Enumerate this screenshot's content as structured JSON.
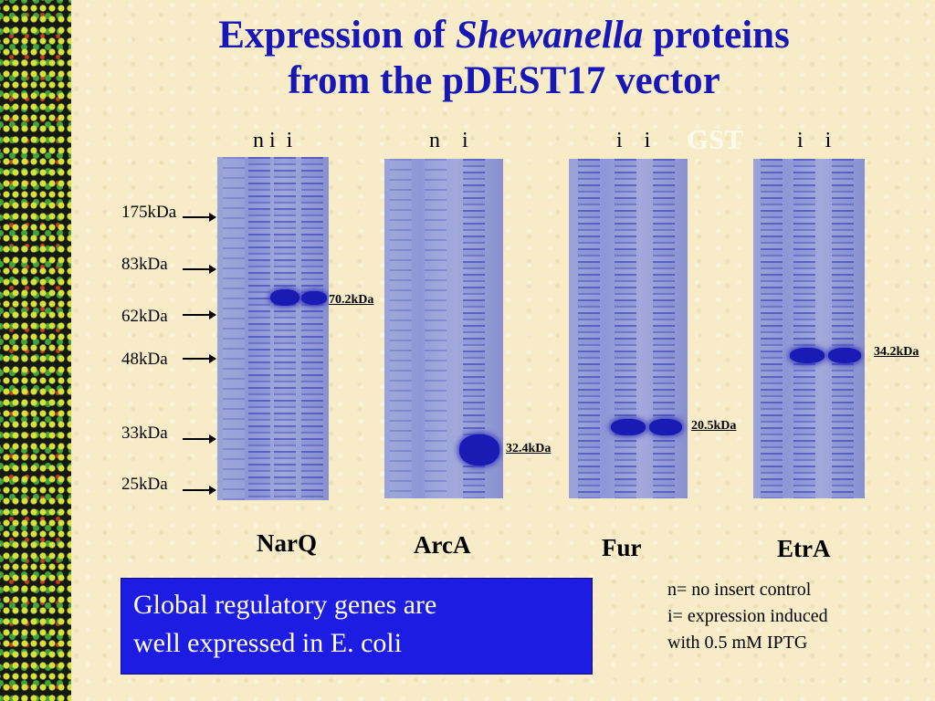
{
  "title": {
    "line1_prefix": "Expression of",
    "line1_italic": "Shewanella",
    "line1_suffix": "proteins",
    "line2": "from the pDEST17 vector"
  },
  "lane_labels": {
    "narq": "n i  i",
    "arca": "n    i",
    "fur": "i    i",
    "etra": "i    i"
  },
  "gst_label": "GST",
  "markers": [
    "175kDa",
    "83kDa",
    "62kDa",
    "48kDa",
    "33kDa",
    "25kDa"
  ],
  "band_sizes": {
    "narq": "70.2kDa",
    "arca": "32.4kDa",
    "fur": "20.5kDa",
    "etra": "34.2kDa"
  },
  "genes": [
    "NarQ",
    "ArcA",
    "Fur",
    "EtrA"
  ],
  "box_text": {
    "line1": "Global regulatory genes are",
    "line2": "well expressed in E. coli"
  },
  "legend": {
    "line1": "n= no insert control",
    "line2": "i= expression induced",
    "line3": "with 0.5 mM IPTG"
  },
  "colors": {
    "title": "#1717b8",
    "box_bg": "#1c1ce2",
    "background": "#f7ecc7"
  }
}
